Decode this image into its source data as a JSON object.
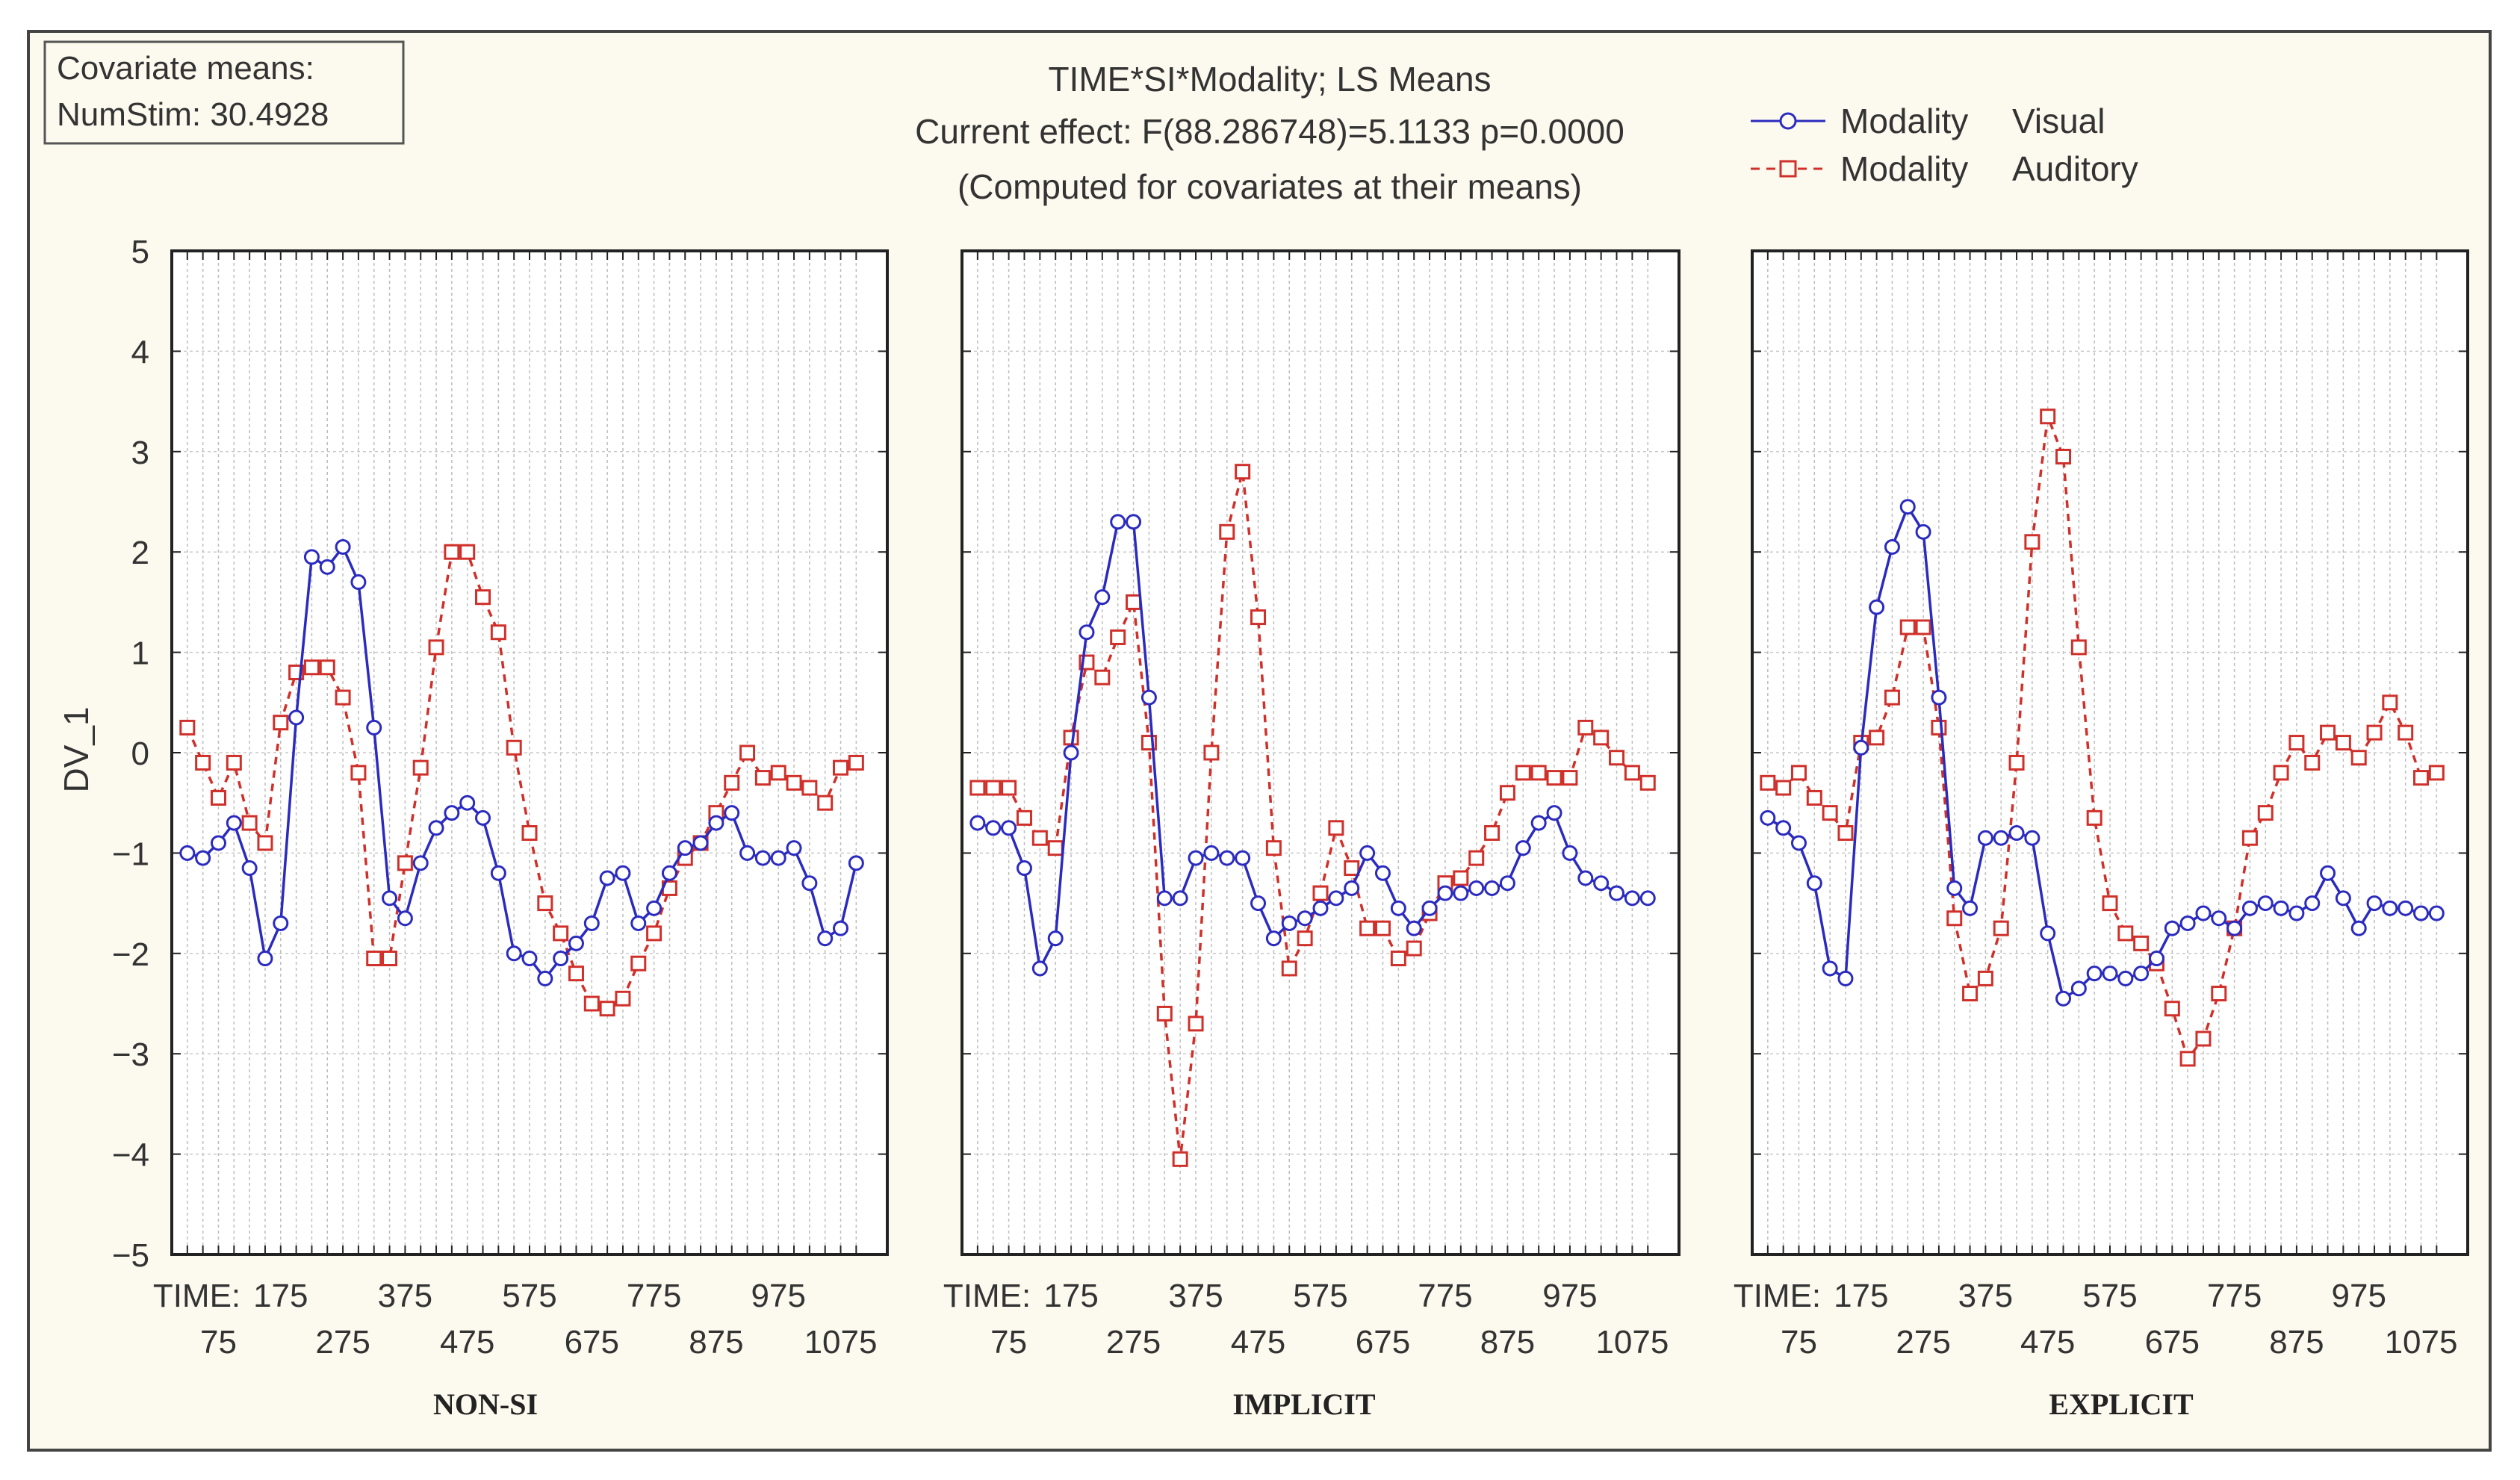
{
  "chart_data": {
    "type": "line",
    "title": "TIME*SI*Modality; LS Means",
    "subtitle_lines": [
      "Current effect: F(88.286748)=5.1133 p=0.0000",
      "(Computed for covariates at their means)"
    ],
    "covariate_box": [
      "Covariate means:",
      "NumStim: 30.4928"
    ],
    "ylabel": "DV_1",
    "xlabel_prefix": "TIME:",
    "ylim": [
      -5,
      5
    ],
    "yticks": [
      "5",
      "4",
      "3",
      "2",
      "1",
      "0",
      "−1",
      "−2",
      "−3",
      "−4",
      "−5"
    ],
    "xticks_upper": [
      "175",
      "375",
      "575",
      "775",
      "975"
    ],
    "xticks_lower": [
      "75",
      "275",
      "475",
      "675",
      "875",
      "1075"
    ],
    "grid": true,
    "legend_position": "top-right",
    "legend": [
      {
        "factor": "Modality",
        "level": "Visual",
        "color": "#2b2bbf",
        "marker": "circle",
        "dash": "solid"
      },
      {
        "factor": "Modality",
        "level": "Auditory",
        "color": "#d0302a",
        "marker": "square",
        "dash": "dashed"
      }
    ],
    "x": [
      25,
      50,
      75,
      100,
      125,
      150,
      175,
      200,
      225,
      250,
      275,
      300,
      325,
      350,
      375,
      400,
      425,
      450,
      475,
      500,
      525,
      550,
      575,
      600,
      625,
      650,
      675,
      700,
      725,
      750,
      775,
      800,
      825,
      850,
      875,
      900,
      925,
      950,
      975,
      1000,
      1025,
      1050,
      1075,
      1100
    ],
    "panels": [
      {
        "name": "NON-SI",
        "series": [
          {
            "name": "Visual",
            "values": [
              -1.0,
              -1.05,
              -0.9,
              -0.7,
              -1.15,
              -2.05,
              -1.7,
              0.35,
              1.95,
              1.85,
              2.05,
              1.7,
              0.25,
              -1.45,
              -1.65,
              -1.1,
              -0.75,
              -0.6,
              -0.5,
              -0.65,
              -1.2,
              -2.0,
              -2.05,
              -2.25,
              -2.05,
              -1.9,
              -1.7,
              -1.25,
              -1.2,
              -1.7,
              -1.55,
              -1.2,
              -0.95,
              -0.9,
              -0.7,
              -0.6,
              -1.0,
              -1.05,
              -1.05,
              -0.95,
              -1.3,
              -1.85,
              -1.75,
              -1.1
            ]
          },
          {
            "name": "Auditory",
            "values": [
              0.25,
              -0.1,
              -0.45,
              -0.1,
              -0.7,
              -0.9,
              0.3,
              0.8,
              0.85,
              0.85,
              0.55,
              -0.2,
              -2.05,
              -2.05,
              -1.1,
              -0.15,
              1.05,
              2.0,
              2.0,
              1.55,
              1.2,
              0.05,
              -0.8,
              -1.5,
              -1.8,
              -2.2,
              -2.5,
              -2.55,
              -2.45,
              -2.1,
              -1.8,
              -1.35,
              -1.05,
              -0.9,
              -0.6,
              -0.3,
              0.0,
              -0.25,
              -0.2,
              -0.3,
              -0.35,
              -0.5,
              -0.15,
              -0.1
            ]
          }
        ]
      },
      {
        "name": "IMPLICIT",
        "series": [
          {
            "name": "Visual",
            "values": [
              -0.7,
              -0.75,
              -0.75,
              -1.15,
              -2.15,
              -1.85,
              0.0,
              1.2,
              1.55,
              2.3,
              2.3,
              0.55,
              -1.45,
              -1.45,
              -1.05,
              -1.0,
              -1.05,
              -1.05,
              -1.5,
              -1.85,
              -1.7,
              -1.65,
              -1.55,
              -1.45,
              -1.35,
              -1.0,
              -1.2,
              -1.55,
              -1.75,
              -1.55,
              -1.4,
              -1.4,
              -1.35,
              -1.35,
              -1.3,
              -0.95,
              -0.7,
              -0.6,
              -1.0,
              -1.25,
              -1.3,
              -1.4,
              -1.45,
              -1.45
            ]
          },
          {
            "name": "Auditory",
            "values": [
              -0.35,
              -0.35,
              -0.35,
              -0.65,
              -0.85,
              -0.95,
              0.15,
              0.9,
              0.75,
              1.15,
              1.5,
              0.1,
              -2.6,
              -4.05,
              -2.7,
              0.0,
              2.2,
              2.8,
              1.35,
              -0.95,
              -2.15,
              -1.85,
              -1.4,
              -0.75,
              -1.15,
              -1.75,
              -1.75,
              -2.05,
              -1.95,
              -1.6,
              -1.3,
              -1.25,
              -1.05,
              -0.8,
              -0.4,
              -0.2,
              -0.2,
              -0.25,
              -0.25,
              0.25,
              0.15,
              -0.05,
              -0.2,
              -0.3
            ]
          }
        ]
      },
      {
        "name": "EXPLICIT",
        "series": [
          {
            "name": "Visual",
            "values": [
              -0.65,
              -0.75,
              -0.9,
              -1.3,
              -2.15,
              -2.25,
              0.05,
              1.45,
              2.05,
              2.45,
              2.2,
              0.55,
              -1.35,
              -1.55,
              -0.85,
              -0.85,
              -0.8,
              -0.85,
              -1.8,
              -2.45,
              -2.35,
              -2.2,
              -2.2,
              -2.25,
              -2.2,
              -2.05,
              -1.75,
              -1.7,
              -1.6,
              -1.65,
              -1.75,
              -1.55,
              -1.5,
              -1.55,
              -1.6,
              -1.5,
              -1.2,
              -1.45,
              -1.75,
              -1.5,
              -1.55,
              -1.55,
              -1.6,
              -1.6
            ]
          },
          {
            "name": "Auditory",
            "values": [
              -0.3,
              -0.35,
              -0.2,
              -0.45,
              -0.6,
              -0.8,
              0.1,
              0.15,
              0.55,
              1.25,
              1.25,
              0.25,
              -1.65,
              -2.4,
              -2.25,
              -1.75,
              -0.1,
              2.1,
              3.35,
              2.95,
              1.05,
              -0.65,
              -1.5,
              -1.8,
              -1.9,
              -2.1,
              -2.55,
              -3.05,
              -2.85,
              -2.4,
              -1.75,
              -0.85,
              -0.6,
              -0.2,
              0.1,
              -0.1,
              0.2,
              0.1,
              -0.05,
              0.2,
              0.5,
              0.2,
              -0.25,
              -0.2
            ]
          }
        ]
      }
    ]
  }
}
